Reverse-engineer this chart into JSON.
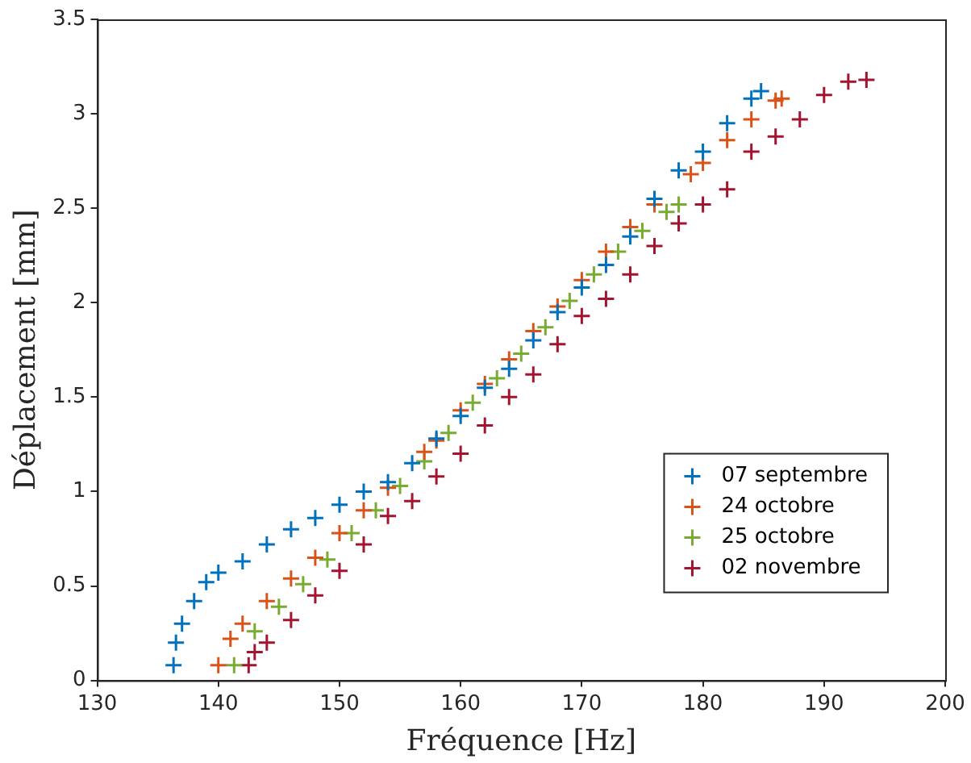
{
  "chart_data": {
    "type": "scatter",
    "xlabel": "Fréquence [Hz]",
    "ylabel": "Déplacement [mm]",
    "xlim": [
      130,
      200
    ],
    "xticks": [
      130,
      140,
      150,
      160,
      170,
      180,
      190,
      200
    ],
    "ylim": [
      0,
      3.5
    ],
    "yticks": [
      0,
      0.5,
      1,
      1.5,
      2,
      2.5,
      3,
      3.5
    ],
    "grid": false,
    "legend": "bottom right",
    "marker": "cross",
    "series": [
      {
        "name": "07 septembre",
        "color": "#0072bd",
        "x": [
          136.3,
          136.5,
          137,
          138,
          139,
          140,
          142,
          144,
          146,
          148,
          150,
          152,
          154,
          156,
          158,
          160,
          162,
          164,
          166,
          168,
          170,
          172,
          174,
          176,
          178,
          180,
          182,
          184,
          184.8
        ],
        "values": [
          0.08,
          0.2,
          0.3,
          0.42,
          0.52,
          0.57,
          0.63,
          0.72,
          0.8,
          0.86,
          0.93,
          1.0,
          1.05,
          1.15,
          1.28,
          1.4,
          1.55,
          1.65,
          1.8,
          1.95,
          2.08,
          2.2,
          2.35,
          2.55,
          2.7,
          2.8,
          2.95,
          3.08,
          3.12
        ]
      },
      {
        "name": "24 octobre",
        "color": "#d95319",
        "x": [
          140,
          141,
          142,
          144,
          146,
          148,
          150,
          152,
          154,
          157,
          158,
          160,
          162,
          164,
          166,
          168,
          170,
          172,
          174,
          176,
          179,
          180,
          182,
          184,
          186,
          186.5
        ],
        "values": [
          0.08,
          0.22,
          0.3,
          0.42,
          0.54,
          0.65,
          0.78,
          0.9,
          1.02,
          1.21,
          1.27,
          1.43,
          1.57,
          1.7,
          1.85,
          1.98,
          2.12,
          2.27,
          2.4,
          2.52,
          2.68,
          2.74,
          2.86,
          2.97,
          3.07,
          3.08
        ]
      },
      {
        "name": "25 octobre",
        "color": "#77ac30",
        "x": [
          141.3,
          143,
          145,
          147,
          149,
          151,
          153,
          155,
          157,
          159,
          161,
          163,
          165,
          167,
          169,
          171,
          173,
          175,
          177,
          178
        ],
        "values": [
          0.08,
          0.26,
          0.39,
          0.51,
          0.64,
          0.78,
          0.9,
          1.03,
          1.16,
          1.31,
          1.47,
          1.6,
          1.73,
          1.87,
          2.01,
          2.15,
          2.27,
          2.38,
          2.48,
          2.52
        ]
      },
      {
        "name": "02 novembre",
        "color": "#a2142f",
        "x": [
          142.5,
          143,
          144,
          146,
          148,
          150,
          152,
          154,
          156,
          158,
          160,
          162,
          164,
          166,
          168,
          170,
          172,
          174,
          176,
          178,
          180,
          182,
          184,
          186,
          188,
          190,
          192,
          193.5
        ],
        "values": [
          0.08,
          0.15,
          0.2,
          0.32,
          0.45,
          0.58,
          0.72,
          0.87,
          0.95,
          1.08,
          1.2,
          1.35,
          1.5,
          1.62,
          1.78,
          1.93,
          2.02,
          2.15,
          2.3,
          2.42,
          2.52,
          2.6,
          2.8,
          2.88,
          2.97,
          3.1,
          3.17,
          3.18
        ]
      }
    ]
  }
}
